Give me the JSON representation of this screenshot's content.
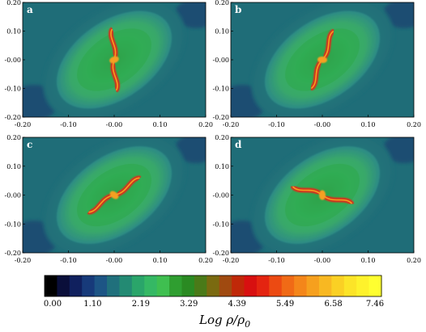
{
  "panels": [
    {
      "label": "a",
      "arm_angle_deg": 0
    },
    {
      "label": "b",
      "arm_angle_deg": 25
    },
    {
      "label": "c",
      "arm_angle_deg": 60
    },
    {
      "label": "d",
      "arm_angle_deg": 110
    }
  ],
  "axes": {
    "x_ticks": [
      "-0.20",
      "-0.10",
      "-0.00",
      "0.10",
      "0.20"
    ],
    "y_ticks": [
      "0.20",
      "0.10",
      "-0.00",
      "-0.10",
      "-0.20"
    ],
    "range": [
      -0.2,
      0.2
    ]
  },
  "colorbar": {
    "ticks": [
      "0.00",
      "1.10",
      "2.19",
      "3.29",
      "4.39",
      "5.49",
      "6.58",
      "7.46"
    ],
    "label": "Log ρ/ρ",
    "label_subscript": "0",
    "colors": [
      "#000000",
      "#0a0f3a",
      "#10205e",
      "#173a7a",
      "#1d5585",
      "#20707c",
      "#238a73",
      "#2aa56a",
      "#35b864",
      "#3fbf50",
      "#2f9e30",
      "#2a8a22",
      "#4a7a18",
      "#7a6a10",
      "#a04a10",
      "#c02808",
      "#d81010",
      "#e42410",
      "#ec4a12",
      "#f06a16",
      "#f4861a",
      "#f6a01e",
      "#f8b822",
      "#fad024",
      "#fce428",
      "#fef22c",
      "#ffff30"
    ]
  },
  "colors": {
    "background_field": "#1f6d78",
    "outer_halo": "#2c8a86",
    "disk_outer": "#3aa86a",
    "disk_mid": "#34b25e",
    "disk_inner": "#2ea84c",
    "arm": "#d6301a",
    "arm_core": "#f5a020"
  }
}
